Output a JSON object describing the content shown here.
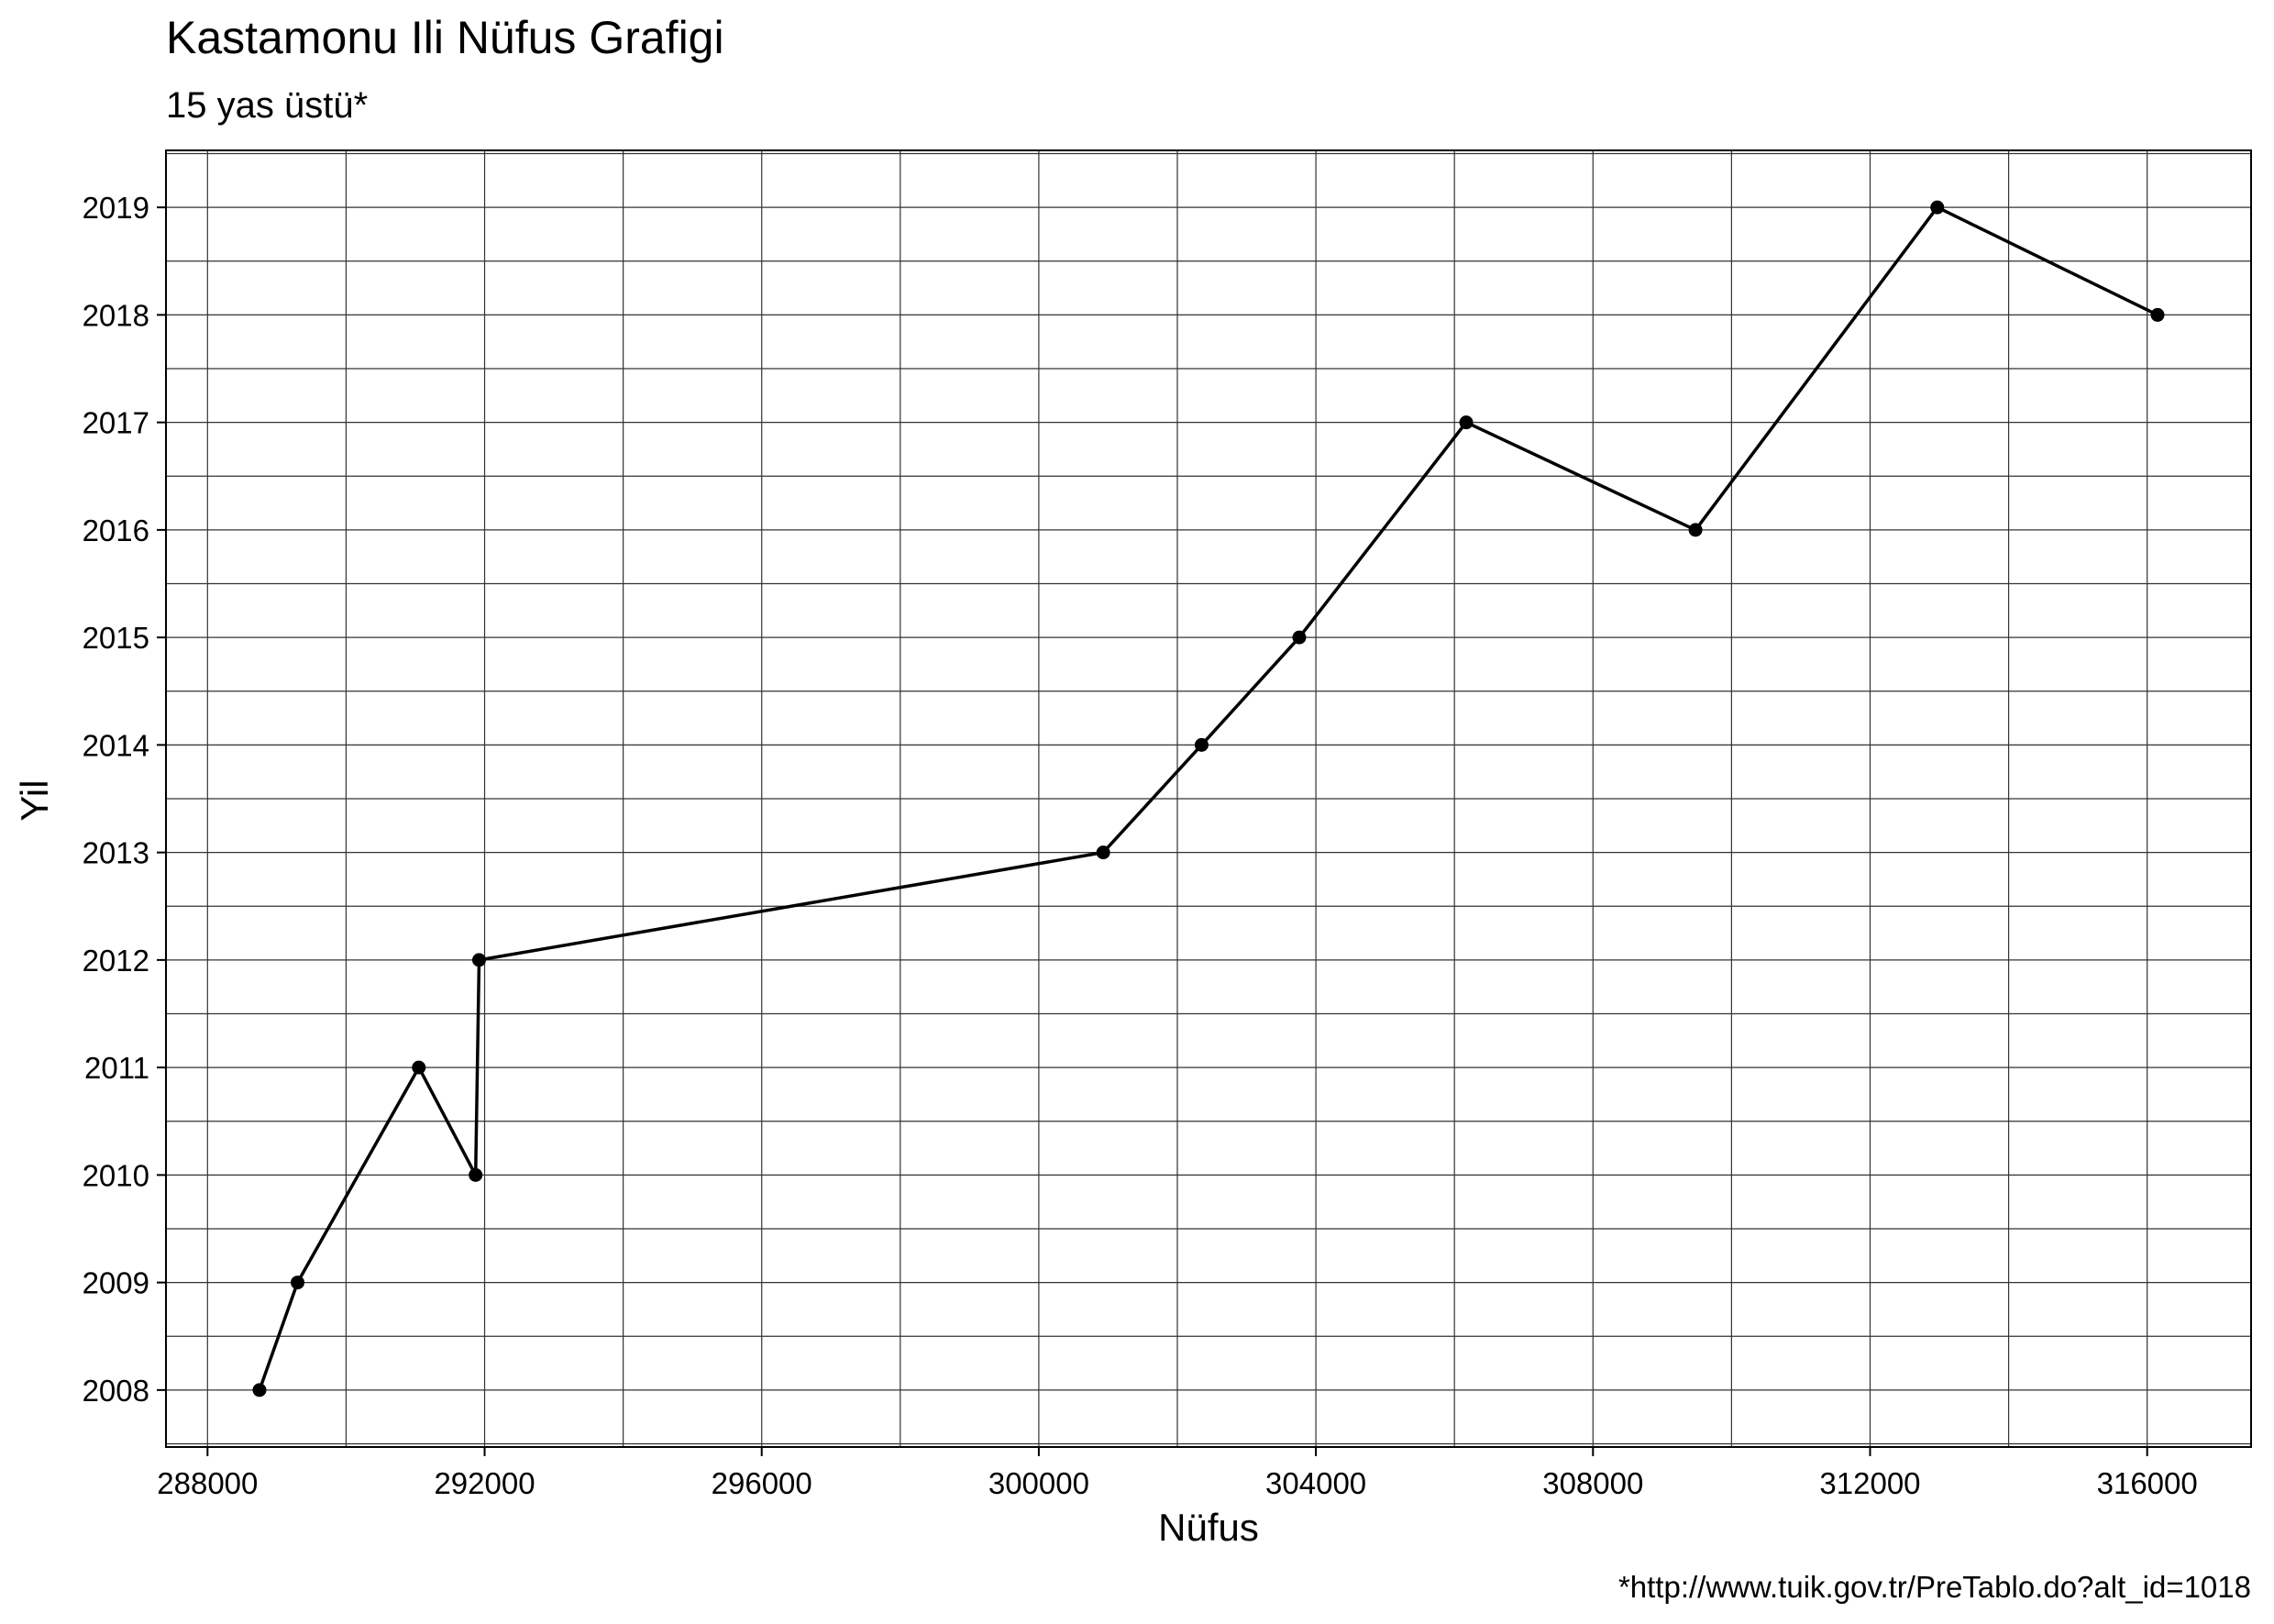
{
  "chart_data": {
    "type": "line",
    "title": "Kastamonu Ili Nüfus Grafigi",
    "subtitle": "15 yas üstü*",
    "xlabel": "Nüfus",
    "ylabel": "Yil",
    "caption": "*http://www.tuik.gov.tr/PreTablo.do?alt_id=1018",
    "xlim": [
      287400,
      317500
    ],
    "ylim": [
      2007.47,
      2019.53
    ],
    "x_ticks": [
      288000,
      292000,
      296000,
      300000,
      304000,
      308000,
      312000,
      316000
    ],
    "x_tick_labels": [
      "288000",
      "292000",
      "296000",
      "300000",
      "304000",
      "308000",
      "312000",
      "316000"
    ],
    "x_minor_ticks": [
      290000,
      294000,
      298000,
      302000,
      306000,
      310000,
      314000
    ],
    "y_ticks": [
      2008,
      2009,
      2010,
      2011,
      2012,
      2013,
      2014,
      2015,
      2016,
      2017,
      2018,
      2019
    ],
    "y_tick_labels": [
      "2008",
      "2009",
      "2010",
      "2011",
      "2012",
      "2013",
      "2014",
      "2015",
      "2016",
      "2017",
      "2018",
      "2019"
    ],
    "grid": true,
    "colors": {
      "line": "#000000",
      "grid": "#333333",
      "background": "#ffffff"
    },
    "series": [
      {
        "name": "Nüfus",
        "points": [
          {
            "year": 2008,
            "x": 288750
          },
          {
            "year": 2009,
            "x": 289300
          },
          {
            "year": 2011,
            "x": 291050
          },
          {
            "year": 2010,
            "x": 291870
          },
          {
            "year": 2012,
            "x": 291920
          },
          {
            "year": 2013,
            "x": 300930
          },
          {
            "year": 2014,
            "x": 302350
          },
          {
            "year": 2015,
            "x": 303760
          },
          {
            "year": 2017,
            "x": 306170
          },
          {
            "year": 2016,
            "x": 309480
          },
          {
            "year": 2019,
            "x": 312970
          },
          {
            "year": 2018,
            "x": 316150
          }
        ]
      }
    ]
  }
}
